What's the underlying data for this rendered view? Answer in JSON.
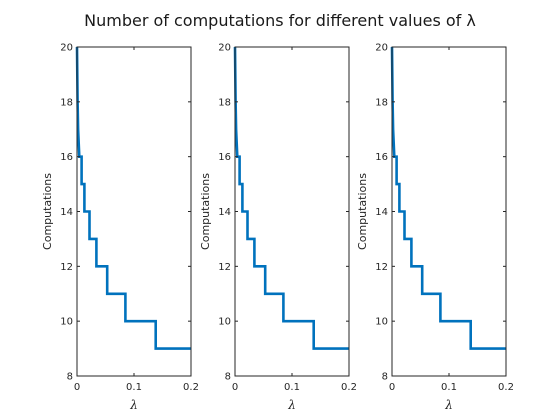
{
  "title": "Number of computations for different values of λ",
  "chart_data": [
    {
      "type": "line",
      "title": "",
      "xlabel": "λ",
      "ylabel": "Computations",
      "xlim": [
        0,
        0.2
      ],
      "ylim": [
        8,
        20
      ],
      "x_ticks": [
        0,
        0.1,
        0.2
      ],
      "x_tick_labels": [
        "0",
        "0.1",
        "0.2"
      ],
      "y_ticks": [
        8,
        10,
        12,
        14,
        16,
        18,
        20
      ],
      "y_tick_labels": [
        "8",
        "10",
        "12",
        "14",
        "16",
        "18",
        "20"
      ],
      "grid": false,
      "color": "#0072BD",
      "series": [
        {
          "x": [
            0,
            0.001,
            0.002,
            0.003,
            0.004,
            0.005,
            0.008,
            0.008,
            0.013,
            0.013,
            0.022,
            0.022,
            0.034,
            0.034,
            0.053,
            0.053,
            0.085,
            0.085,
            0.138,
            0.138,
            0.2
          ],
          "y": [
            20,
            18,
            17,
            16.5,
            16,
            16,
            16,
            15,
            15,
            14,
            14,
            13,
            13,
            12,
            12,
            11,
            11,
            10,
            10,
            9,
            9
          ]
        }
      ]
    },
    {
      "type": "line",
      "title": "",
      "xlabel": "λ",
      "ylabel": "Computations",
      "xlim": [
        0,
        0.2
      ],
      "ylim": [
        8,
        20
      ],
      "x_ticks": [
        0,
        0.1,
        0.2
      ],
      "x_tick_labels": [
        "0",
        "0.1",
        "0.2"
      ],
      "y_ticks": [
        8,
        10,
        12,
        14,
        16,
        18,
        20
      ],
      "y_tick_labels": [
        "8",
        "10",
        "12",
        "14",
        "16",
        "18",
        "20"
      ],
      "grid": false,
      "color": "#0072BD",
      "series": [
        {
          "x": [
            0,
            0.001,
            0.002,
            0.003,
            0.004,
            0.005,
            0.008,
            0.008,
            0.013,
            0.013,
            0.022,
            0.022,
            0.034,
            0.034,
            0.053,
            0.053,
            0.085,
            0.085,
            0.138,
            0.138,
            0.2
          ],
          "y": [
            20,
            18,
            17,
            16.5,
            16,
            16,
            16,
            15,
            15,
            14,
            14,
            13,
            13,
            12,
            12,
            11,
            11,
            10,
            10,
            9,
            9
          ]
        }
      ]
    },
    {
      "type": "line",
      "title": "",
      "xlabel": "λ",
      "ylabel": "Computations",
      "xlim": [
        0,
        0.2
      ],
      "ylim": [
        8,
        20
      ],
      "x_ticks": [
        0,
        0.1,
        0.2
      ],
      "x_tick_labels": [
        "0",
        "0.1",
        "0.2"
      ],
      "y_ticks": [
        8,
        10,
        12,
        14,
        16,
        18,
        20
      ],
      "y_tick_labels": [
        "8",
        "10",
        "12",
        "14",
        "16",
        "18",
        "20"
      ],
      "grid": false,
      "color": "#0072BD",
      "series": [
        {
          "x": [
            0,
            0.001,
            0.002,
            0.003,
            0.004,
            0.005,
            0.008,
            0.008,
            0.013,
            0.013,
            0.022,
            0.022,
            0.034,
            0.034,
            0.053,
            0.053,
            0.085,
            0.085,
            0.138,
            0.138,
            0.2
          ],
          "y": [
            20,
            18,
            17,
            16.5,
            16,
            16,
            16,
            15,
            15,
            14,
            14,
            13,
            13,
            12,
            12,
            11,
            11,
            10,
            10,
            9,
            9
          ]
        }
      ]
    }
  ]
}
